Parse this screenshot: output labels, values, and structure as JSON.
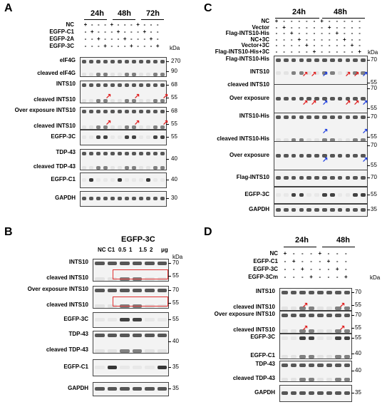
{
  "panels": [
    {
      "id": "A",
      "letter": "A",
      "left": 0,
      "top": 0,
      "times": [
        {
          "text": "24h",
          "x": 118
        },
        {
          "text": "48h",
          "x": 165
        },
        {
          "text": "72h",
          "x": 208
        }
      ],
      "conditions": [
        "NC",
        "EGFP-C1",
        "EGFP-2A",
        "EGFP-3C"
      ],
      "kda_header": "kDa",
      "blots": [
        {
          "labels": [
            "eIF4G",
            "cleaved eIF4G"
          ],
          "kda": [
            "270",
            "90"
          ]
        },
        {
          "labels": [
            "INTS10",
            "cleaved INTS10"
          ],
          "kda": [
            "68",
            "55"
          ]
        },
        {
          "labels": [
            "Over exposure INTS10",
            "cleaved INTS10"
          ],
          "kda": [
            "68",
            "55"
          ]
        },
        {
          "labels": [
            "EGFP-3C"
          ],
          "kda": [
            "55"
          ]
        },
        {
          "labels": [
            "TDP-43",
            "cleaved TDP-43"
          ],
          "kda": [
            "40"
          ]
        },
        {
          "labels": [
            "EGFP-C1"
          ],
          "kda": [
            "40"
          ]
        },
        {
          "labels": [
            "GAPDH"
          ],
          "kda": [
            "30"
          ]
        }
      ]
    },
    {
      "id": "B",
      "letter": "B",
      "title": "EGFP-3C",
      "lanes": [
        "NC",
        "C1",
        "0.5",
        "1",
        "1.5",
        "2",
        "μg"
      ],
      "kda_header": "kDa",
      "blots": [
        {
          "labels": [
            "INTS10",
            "cleaved INTS10"
          ],
          "kda": [
            "70",
            "55"
          ]
        },
        {
          "labels": [
            "Over exposure INTS10",
            "cleaved INTS10"
          ],
          "kda": [
            "70",
            "55"
          ]
        },
        {
          "labels": [
            "EGFP-3C"
          ],
          "kda": [
            "55"
          ]
        },
        {
          "labels": [
            "TDP-43",
            "cleaved TDP-43"
          ],
          "kda": [
            "40"
          ]
        },
        {
          "labels": [
            "EGFP-C1"
          ],
          "kda": [
            "35"
          ]
        },
        {
          "labels": [
            "GAPDH"
          ],
          "kda": [
            "35"
          ]
        }
      ]
    },
    {
      "id": "C",
      "letter": "C",
      "times": [
        {
          "text": "24h"
        },
        {
          "text": "48h"
        }
      ],
      "conditions": [
        "NC",
        "Vector",
        "Flag-INTS10-His",
        "NC+3C",
        "Vector+3C",
        "Flag-INTS10-His+3C"
      ],
      "kda_header": "kDa",
      "blots": [
        {
          "labels": [
            "Flag-INTS10-His",
            "INTS10",
            "cleaved INTS10"
          ],
          "kda": [
            "70",
            "55"
          ]
        },
        {
          "labels": [
            "Over exposure"
          ],
          "kda": [
            "70",
            "55"
          ]
        },
        {
          "labels": [
            "INTS10-His",
            "cleaved INTS10-His"
          ],
          "kda": [
            "70",
            "55"
          ]
        },
        {
          "labels": [
            "Over exposure"
          ],
          "kda": [
            "70",
            "55"
          ]
        },
        {
          "labels": [
            "Flag-INTS10"
          ],
          "kda": [
            "70"
          ]
        },
        {
          "labels": [
            "EGFP-3C"
          ],
          "kda": [
            "55"
          ]
        },
        {
          "labels": [
            "GAPDH"
          ],
          "kda": [
            "35"
          ]
        }
      ]
    },
    {
      "id": "D",
      "letter": "D",
      "times": [
        {
          "text": "24h"
        },
        {
          "text": "48h"
        }
      ],
      "conditions": [
        "NC",
        "EGFP-C1",
        "EGFP-3C",
        "EGFP-3Cm"
      ],
      "kda_header": "kDa",
      "blots": [
        {
          "labels": [
            "INTS10",
            "cleaved INTS10"
          ],
          "kda": [
            "70",
            "55"
          ]
        },
        {
          "labels": [
            "Over exposure INTS10",
            "cleaved INTS10"
          ],
          "kda": [
            "70",
            "55"
          ]
        },
        {
          "labels": [
            "EGFP-3C",
            "EGFP-C1"
          ],
          "kda": [
            "55",
            "40"
          ]
        },
        {
          "labels": [
            "TDP-43",
            "cleaved TDP-43"
          ],
          "kda": [
            "40"
          ]
        },
        {
          "labels": [
            "GAPDH"
          ],
          "kda": [
            "35"
          ]
        }
      ]
    }
  ],
  "colors": {
    "red_arrow": "#e02020",
    "blue_arrow": "#2040e0",
    "box": "#e03030",
    "band": "#222222"
  }
}
